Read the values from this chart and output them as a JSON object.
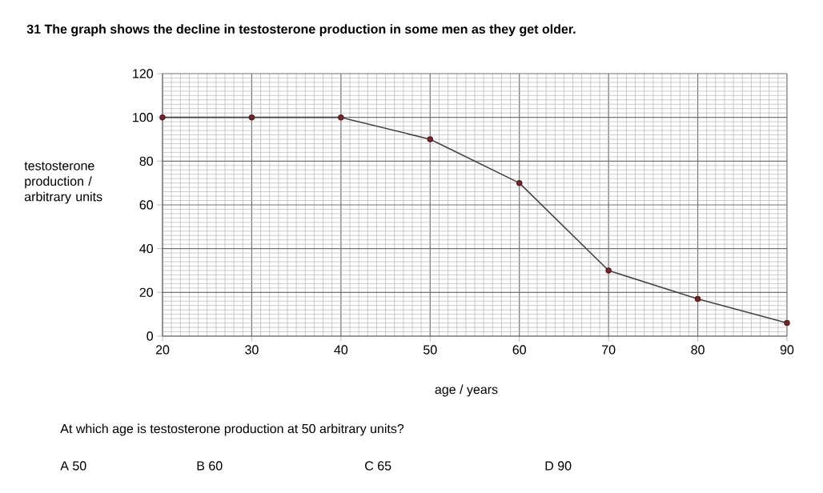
{
  "chart_data": {
    "type": "line",
    "title": "31 The graph shows the decline in testosterone production in some men as they get older.",
    "xlabel": "age / years",
    "ylabel": "testosterone production / arbitrary units",
    "x": [
      20,
      30,
      40,
      50,
      60,
      70,
      80,
      90
    ],
    "series": [
      {
        "color": "#4a4040",
        "values": [
          100,
          100,
          100,
          90,
          70,
          30,
          17,
          6
        ]
      }
    ],
    "xlim": [
      20,
      90
    ],
    "ylim": [
      0,
      120
    ],
    "xticks": [
      20,
      30,
      40,
      50,
      60,
      70,
      80,
      90
    ],
    "yticks": [
      0,
      20,
      40,
      60,
      80,
      100,
      120
    ],
    "grid": true,
    "marker": "circle",
    "line_style": "solid",
    "annotations": [
      "At which age is testosterone production at 50 arbitrary units?",
      "A 50",
      "B 60",
      "C 65",
      "D 90"
    ]
  }
}
